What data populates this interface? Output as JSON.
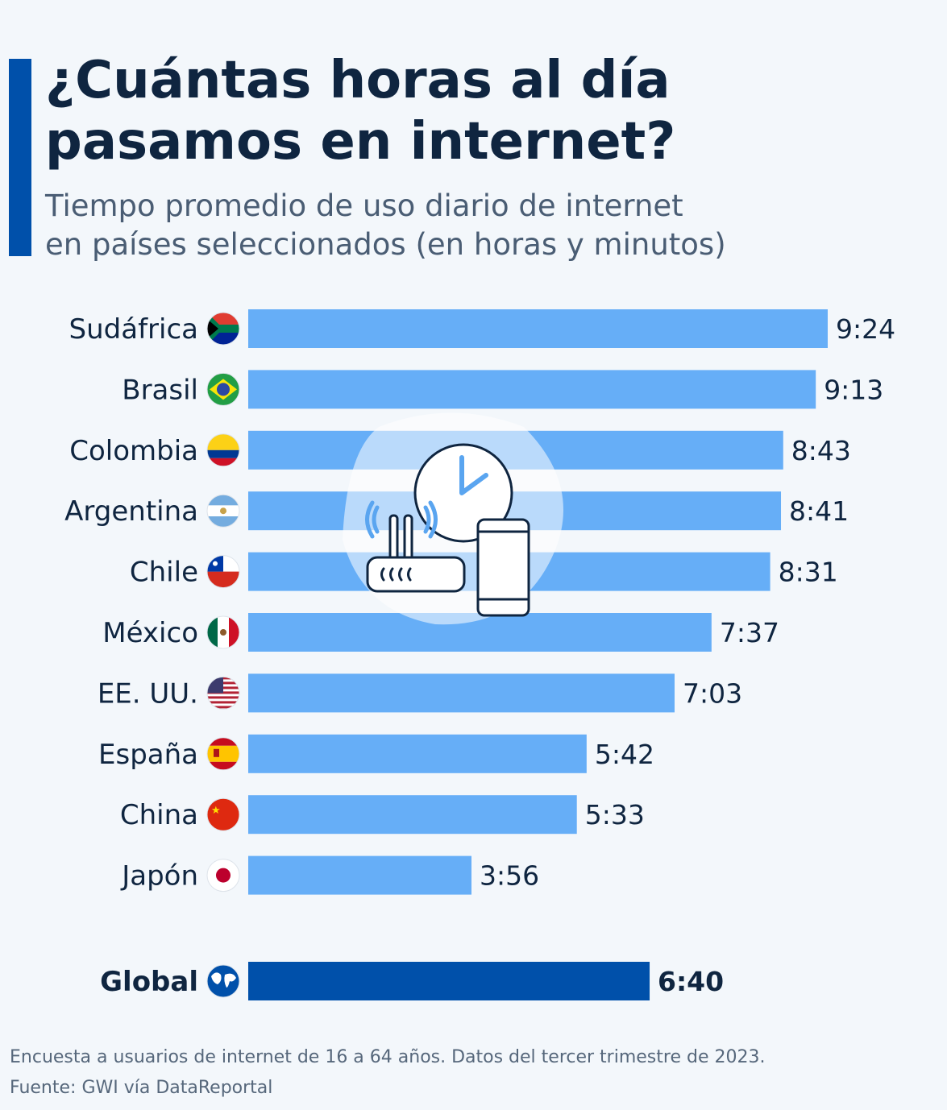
{
  "header": {
    "title": "¿Cuántas horas al día pasamos en internet?",
    "subtitle_line1": "Tiempo promedio de uso diario de internet",
    "subtitle_line2": "en países seleccionados (en horas y minutos)"
  },
  "colors": {
    "bar": "#66aef7",
    "global_bar": "#0050aa",
    "accent": "#0050aa",
    "title": "#0f2540"
  },
  "illustration": {
    "icons": [
      "clock-icon",
      "wifi-router-icon",
      "smartphone-icon"
    ]
  },
  "chart_data": {
    "type": "bar",
    "orientation": "horizontal",
    "categories": [
      "Sudáfrica",
      "Brasil",
      "Colombia",
      "Argentina",
      "Chile",
      "México",
      "EE. UU.",
      "España",
      "China",
      "Japón",
      "Global"
    ],
    "labels": [
      "9:24",
      "9:13",
      "8:43",
      "8:41",
      "8:31",
      "7:37",
      "7:03",
      "5:42",
      "5:33",
      "3:56",
      "6:40"
    ],
    "values_hours": [
      9.4,
      9.217,
      8.717,
      8.683,
      8.517,
      7.617,
      7.05,
      5.7,
      5.55,
      3.933,
      6.667
    ],
    "flags": [
      "flag-south-africa",
      "flag-brazil",
      "flag-colombia",
      "flag-argentina",
      "flag-chile",
      "flag-mexico",
      "flag-usa",
      "flag-spain",
      "flag-china",
      "flag-japan",
      "globe-icon"
    ],
    "highlight": "Global",
    "xlabel": "",
    "ylabel": "",
    "grid": false
  },
  "footer": {
    "note": "Encuesta a usuarios de internet de 16 a 64 años. Datos del tercer trimestre de 2023.",
    "source": "Fuente: GWI vía DataReportal"
  }
}
